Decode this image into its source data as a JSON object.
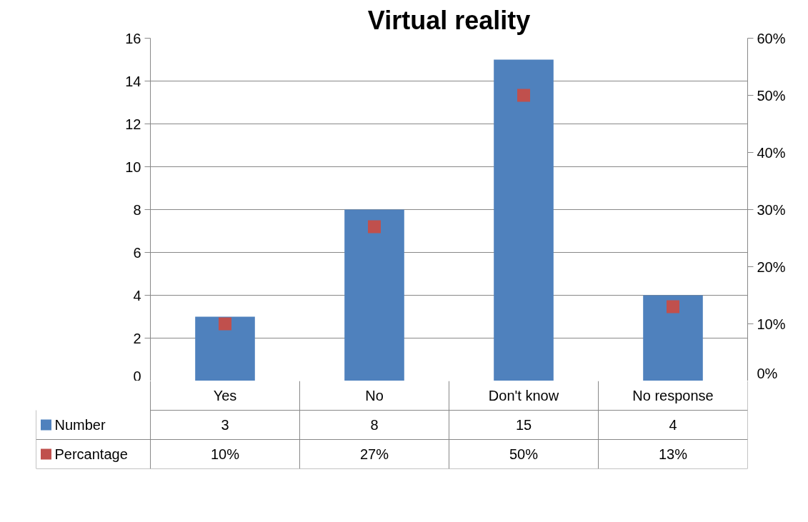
{
  "chart_data": {
    "type": "bar",
    "title": "Virtual reality",
    "categories": [
      "Yes",
      "No",
      "Don't know",
      "No response"
    ],
    "series": [
      {
        "name": "Number",
        "color": "#4f81bd",
        "values": [
          3,
          8,
          15,
          4
        ],
        "value_labels": [
          "3",
          "8",
          "15",
          "4"
        ]
      },
      {
        "name": "Percantage",
        "type": "scatter",
        "axis": "y2",
        "marker": "square",
        "color": "#c0504d",
        "values": [
          10,
          27,
          50,
          13
        ],
        "value_labels": [
          "10%",
          "27%",
          "50%",
          "13%"
        ]
      }
    ],
    "ylim": [
      0,
      16
    ],
    "yticks": [
      0,
      2,
      4,
      6,
      8,
      10,
      12,
      14,
      16
    ],
    "y2lim": [
      0,
      60
    ],
    "y2ticks": [
      {
        "value": 0,
        "label": "0%"
      },
      {
        "value": 10,
        "label": "10%"
      },
      {
        "value": 20,
        "label": "20%"
      },
      {
        "value": 30,
        "label": "30%"
      },
      {
        "value": 40,
        "label": "40%"
      },
      {
        "value": 50,
        "label": "50%"
      },
      {
        "value": 60,
        "label": "60%"
      }
    ],
    "grid": "y",
    "legend": "bottom"
  }
}
